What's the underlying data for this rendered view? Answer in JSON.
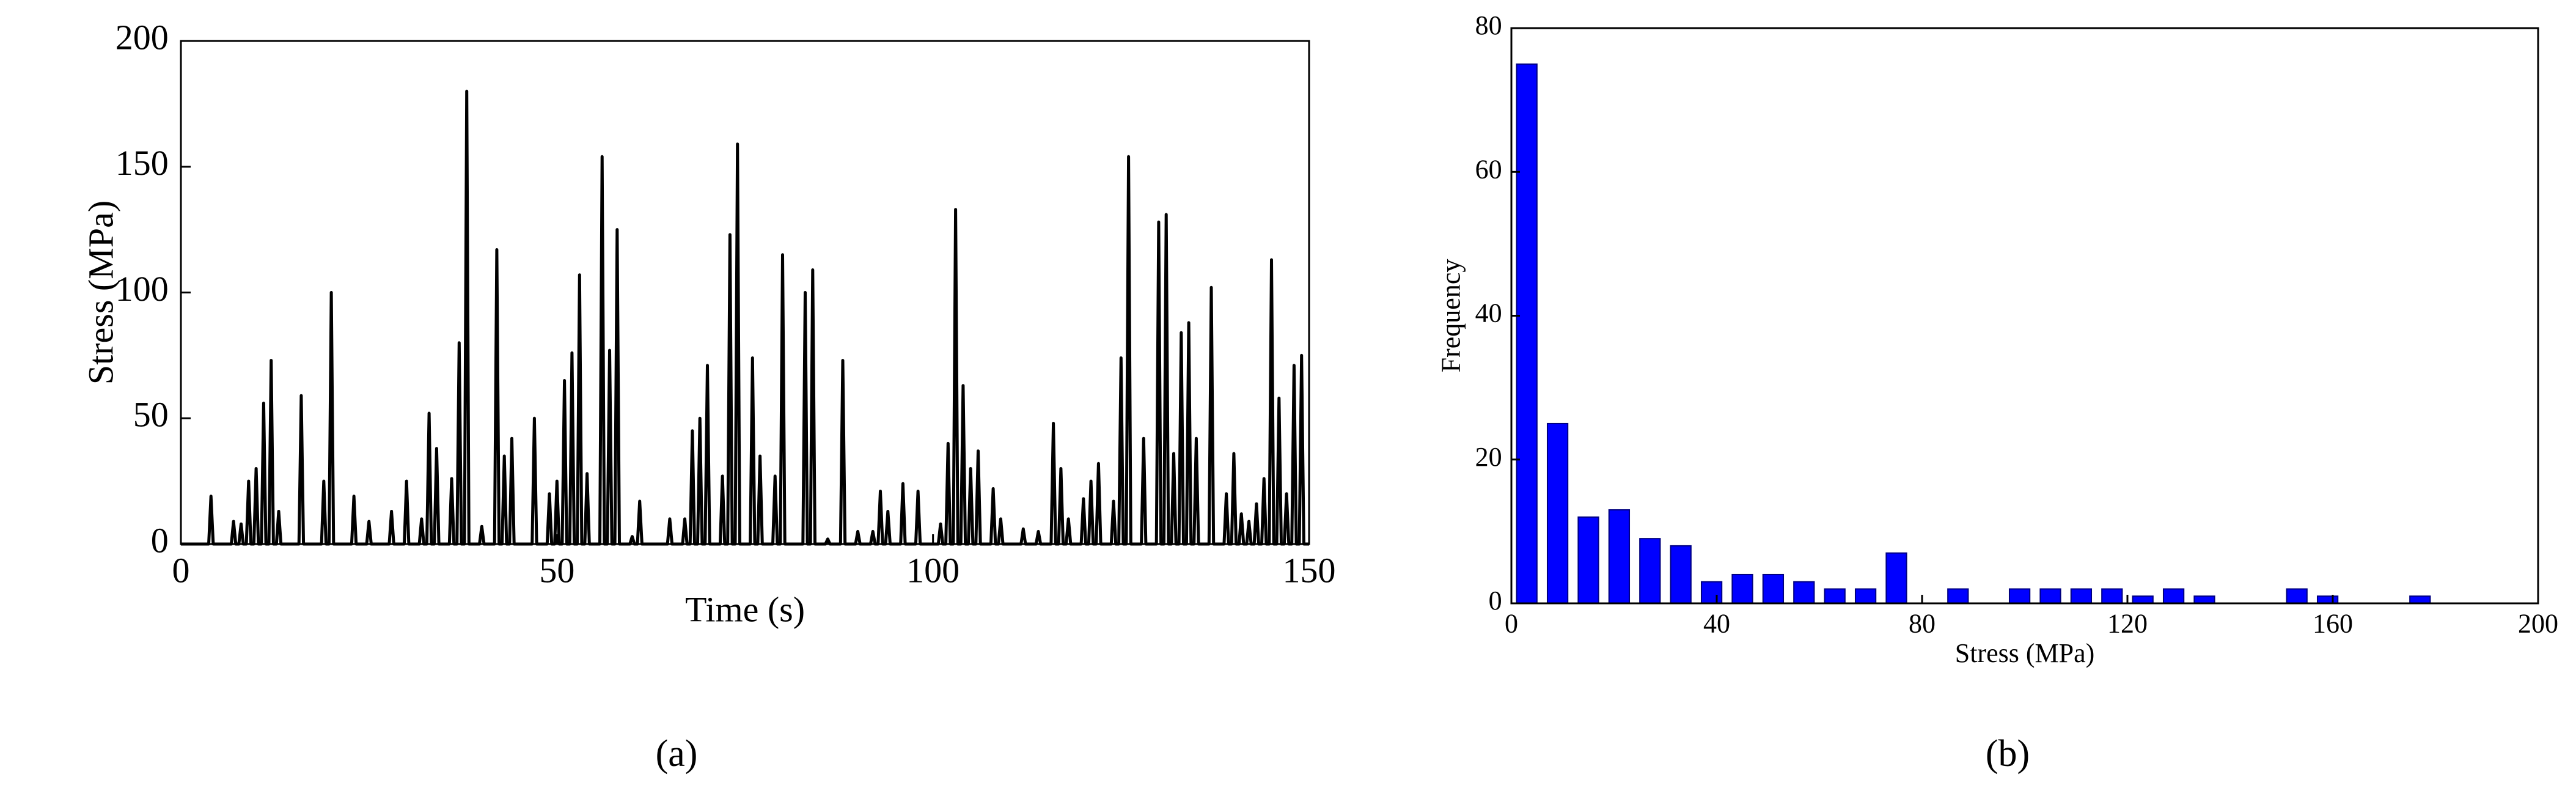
{
  "chart_data": [
    {
      "type": "line",
      "xlabel": "Time (s)",
      "ylabel": "Stress (MPa)",
      "caption": "(a)",
      "xlim": [
        0,
        150
      ],
      "xticks": [
        0,
        50,
        100,
        150
      ],
      "ylim": [
        0,
        200
      ],
      "yticks": [
        0,
        50,
        100,
        150,
        200
      ],
      "series": [
        {
          "color": "#000000",
          "x": [
            0,
            3.7,
            4,
            4.3,
            6.7,
            7,
            7.3,
            7.7,
            8,
            8.3,
            8.7,
            9,
            9.3,
            9.7,
            10,
            10.3,
            10.7,
            11,
            11.3,
            11.7,
            12,
            12.3,
            12.7,
            13,
            13.3,
            15.7,
            16,
            16.3,
            18.7,
            19,
            19.3,
            19.7,
            20,
            20.3,
            22.7,
            23,
            23.3,
            24.7,
            25,
            25.3,
            27.7,
            28,
            28.3,
            29.7,
            30,
            30.3,
            31.7,
            32,
            32.3,
            32.7,
            33,
            33.3,
            33.7,
            34,
            34.3,
            35.7,
            36,
            36.3,
            36.7,
            37,
            37.3,
            37.7,
            38,
            38.3,
            39.7,
            40,
            40.3,
            41.7,
            42,
            42.3,
            42.7,
            43,
            43.3,
            43.7,
            44,
            44.3,
            46.7,
            47,
            47.3,
            48.7,
            49,
            49.3,
            49.7,
            50,
            50.3,
            50.7,
            51,
            51.3,
            51.7,
            52,
            52.3,
            52.7,
            53,
            53.3,
            53.7,
            54,
            54.3,
            55.7,
            56,
            56.3,
            56.7,
            57,
            57.3,
            57.7,
            58,
            58.3,
            59.7,
            60,
            60.3,
            60.7,
            61,
            61.3,
            64.7,
            65,
            65.3,
            66.7,
            67,
            67.3,
            67.7,
            68,
            68.3,
            68.7,
            69,
            69.3,
            69.7,
            70,
            70.3,
            71.7,
            72,
            72.3,
            72.7,
            73,
            73.3,
            73.7,
            74,
            74.3,
            75.7,
            76,
            76.3,
            76.7,
            77,
            77.3,
            78.7,
            79,
            79.3,
            79.7,
            80,
            80.3,
            82.7,
            83,
            83.3,
            83.7,
            84,
            84.3,
            85.7,
            86,
            86.3,
            87.7,
            88,
            88.3,
            89.7,
            90,
            90.3,
            91.7,
            92,
            92.3,
            92.7,
            93,
            93.3,
            93.7,
            94,
            94.3,
            95.7,
            96,
            96.3,
            97.7,
            98,
            98.3,
            100.7,
            101,
            101.3,
            101.7,
            102,
            102.3,
            102.7,
            103,
            103.3,
            103.7,
            104,
            104.3,
            104.7,
            105,
            105.3,
            105.7,
            106,
            106.3,
            107.7,
            108,
            108.3,
            108.7,
            109,
            109.3,
            111.7,
            112,
            112.3,
            113.7,
            114,
            114.3,
            115.7,
            116,
            116.3,
            116.7,
            117,
            117.3,
            117.7,
            118,
            118.3,
            119.7,
            120,
            120.3,
            120.7,
            121,
            121.3,
            121.7,
            122,
            122.3,
            123.7,
            124,
            124.3,
            124.7,
            125,
            125.3,
            125.7,
            126,
            126.3,
            127.7,
            128,
            128.3,
            129.7,
            130,
            130.3,
            130.7,
            131,
            131.3,
            131.7,
            132,
            132.3,
            132.7,
            133,
            133.3,
            133.7,
            134,
            134.3,
            134.7,
            135,
            135.3,
            136.7,
            137,
            137.3,
            138.7,
            139,
            139.3,
            139.7,
            140,
            140.3,
            140.7,
            141,
            141.3,
            141.7,
            142,
            142.3,
            142.7,
            143,
            143.3,
            143.7,
            144,
            144.3,
            144.7,
            145,
            145.3,
            145.7,
            146,
            146.3,
            146.7,
            147,
            147.3,
            147.7,
            148,
            148.3,
            148.7,
            149,
            149.3,
            150
          ],
          "values": [
            0,
            0,
            19,
            0,
            0,
            9,
            0,
            0,
            8,
            0,
            0,
            25,
            0,
            0,
            30,
            0,
            0,
            56,
            0,
            0,
            73,
            0,
            0,
            13,
            0,
            0,
            59,
            0,
            0,
            25,
            0,
            0,
            100,
            0,
            0,
            19,
            0,
            0,
            9,
            0,
            0,
            13,
            0,
            0,
            25,
            0,
            0,
            10,
            0,
            0,
            52,
            0,
            0,
            38,
            0,
            0,
            26,
            0,
            0,
            80,
            0,
            0,
            180,
            0,
            0,
            7,
            0,
            0,
            117,
            0,
            0,
            35,
            0,
            0,
            42,
            0,
            0,
            50,
            0,
            0,
            20,
            0,
            0,
            25,
            0,
            0,
            65,
            0,
            0,
            76,
            0,
            0,
            107,
            0,
            0,
            28,
            0,
            0,
            154,
            0,
            0,
            77,
            0,
            0,
            125,
            0,
            0,
            3,
            0,
            0,
            17,
            0,
            0,
            10,
            0,
            0,
            10,
            0,
            0,
            45,
            0,
            0,
            50,
            0,
            0,
            71,
            0,
            0,
            27,
            0,
            0,
            123,
            0,
            0,
            159,
            0,
            0,
            74,
            0,
            0,
            35,
            0,
            0,
            27,
            0,
            0,
            115,
            0,
            0,
            100,
            0,
            0,
            109,
            0,
            0,
            2,
            0,
            0,
            73,
            0,
            0,
            5,
            0,
            0,
            5,
            0,
            0,
            21,
            0,
            0,
            13,
            0,
            0,
            24,
            0,
            0,
            21,
            0,
            0,
            8,
            0,
            0,
            40,
            0,
            0,
            133,
            0,
            0,
            63,
            0,
            0,
            30,
            0,
            0,
            37,
            0,
            0,
            22,
            0,
            0,
            10,
            0,
            0,
            6,
            0,
            0,
            5,
            0,
            0,
            48,
            0,
            0,
            30,
            0,
            0,
            10,
            0,
            0,
            18,
            0,
            0,
            25,
            0,
            0,
            32,
            0,
            0,
            17,
            0,
            0,
            74,
            0,
            0,
            154,
            0,
            0,
            42,
            0,
            0,
            128,
            0,
            0,
            131,
            0,
            0,
            36,
            0,
            0,
            84,
            0,
            0,
            88,
            0,
            0,
            42,
            0,
            0,
            102,
            0,
            0,
            20,
            0,
            0,
            36,
            0,
            0,
            12,
            0,
            0,
            9,
            0,
            0,
            16,
            0,
            0,
            26,
            0,
            0,
            113,
            0,
            0,
            58,
            0,
            0,
            20,
            0,
            0,
            71,
            0,
            0,
            75,
            0,
            0
          ]
        }
      ]
    },
    {
      "type": "histogram",
      "xlabel": "Stress (MPa)",
      "ylabel": "Frequency",
      "caption": "(b)",
      "color": "#0000ff",
      "xlim": [
        0,
        200
      ],
      "xticks": [
        0,
        40,
        80,
        120,
        160,
        200
      ],
      "ylim": [
        0,
        80
      ],
      "yticks": [
        0,
        20,
        40,
        60,
        80
      ],
      "bins": [
        0,
        6,
        12,
        18,
        24,
        30,
        36,
        42,
        48,
        54,
        60,
        66,
        72,
        78,
        84,
        90,
        96,
        102,
        108,
        114,
        120,
        126,
        132,
        138,
        144,
        150,
        156,
        162,
        168,
        174,
        180
      ],
      "counts": [
        75,
        25,
        12,
        13,
        9,
        8,
        3,
        4,
        4,
        3,
        2,
        2,
        7,
        0,
        2,
        0,
        2,
        2,
        2,
        2,
        1,
        2,
        1,
        0,
        0,
        2,
        1,
        0,
        0,
        1
      ]
    }
  ]
}
